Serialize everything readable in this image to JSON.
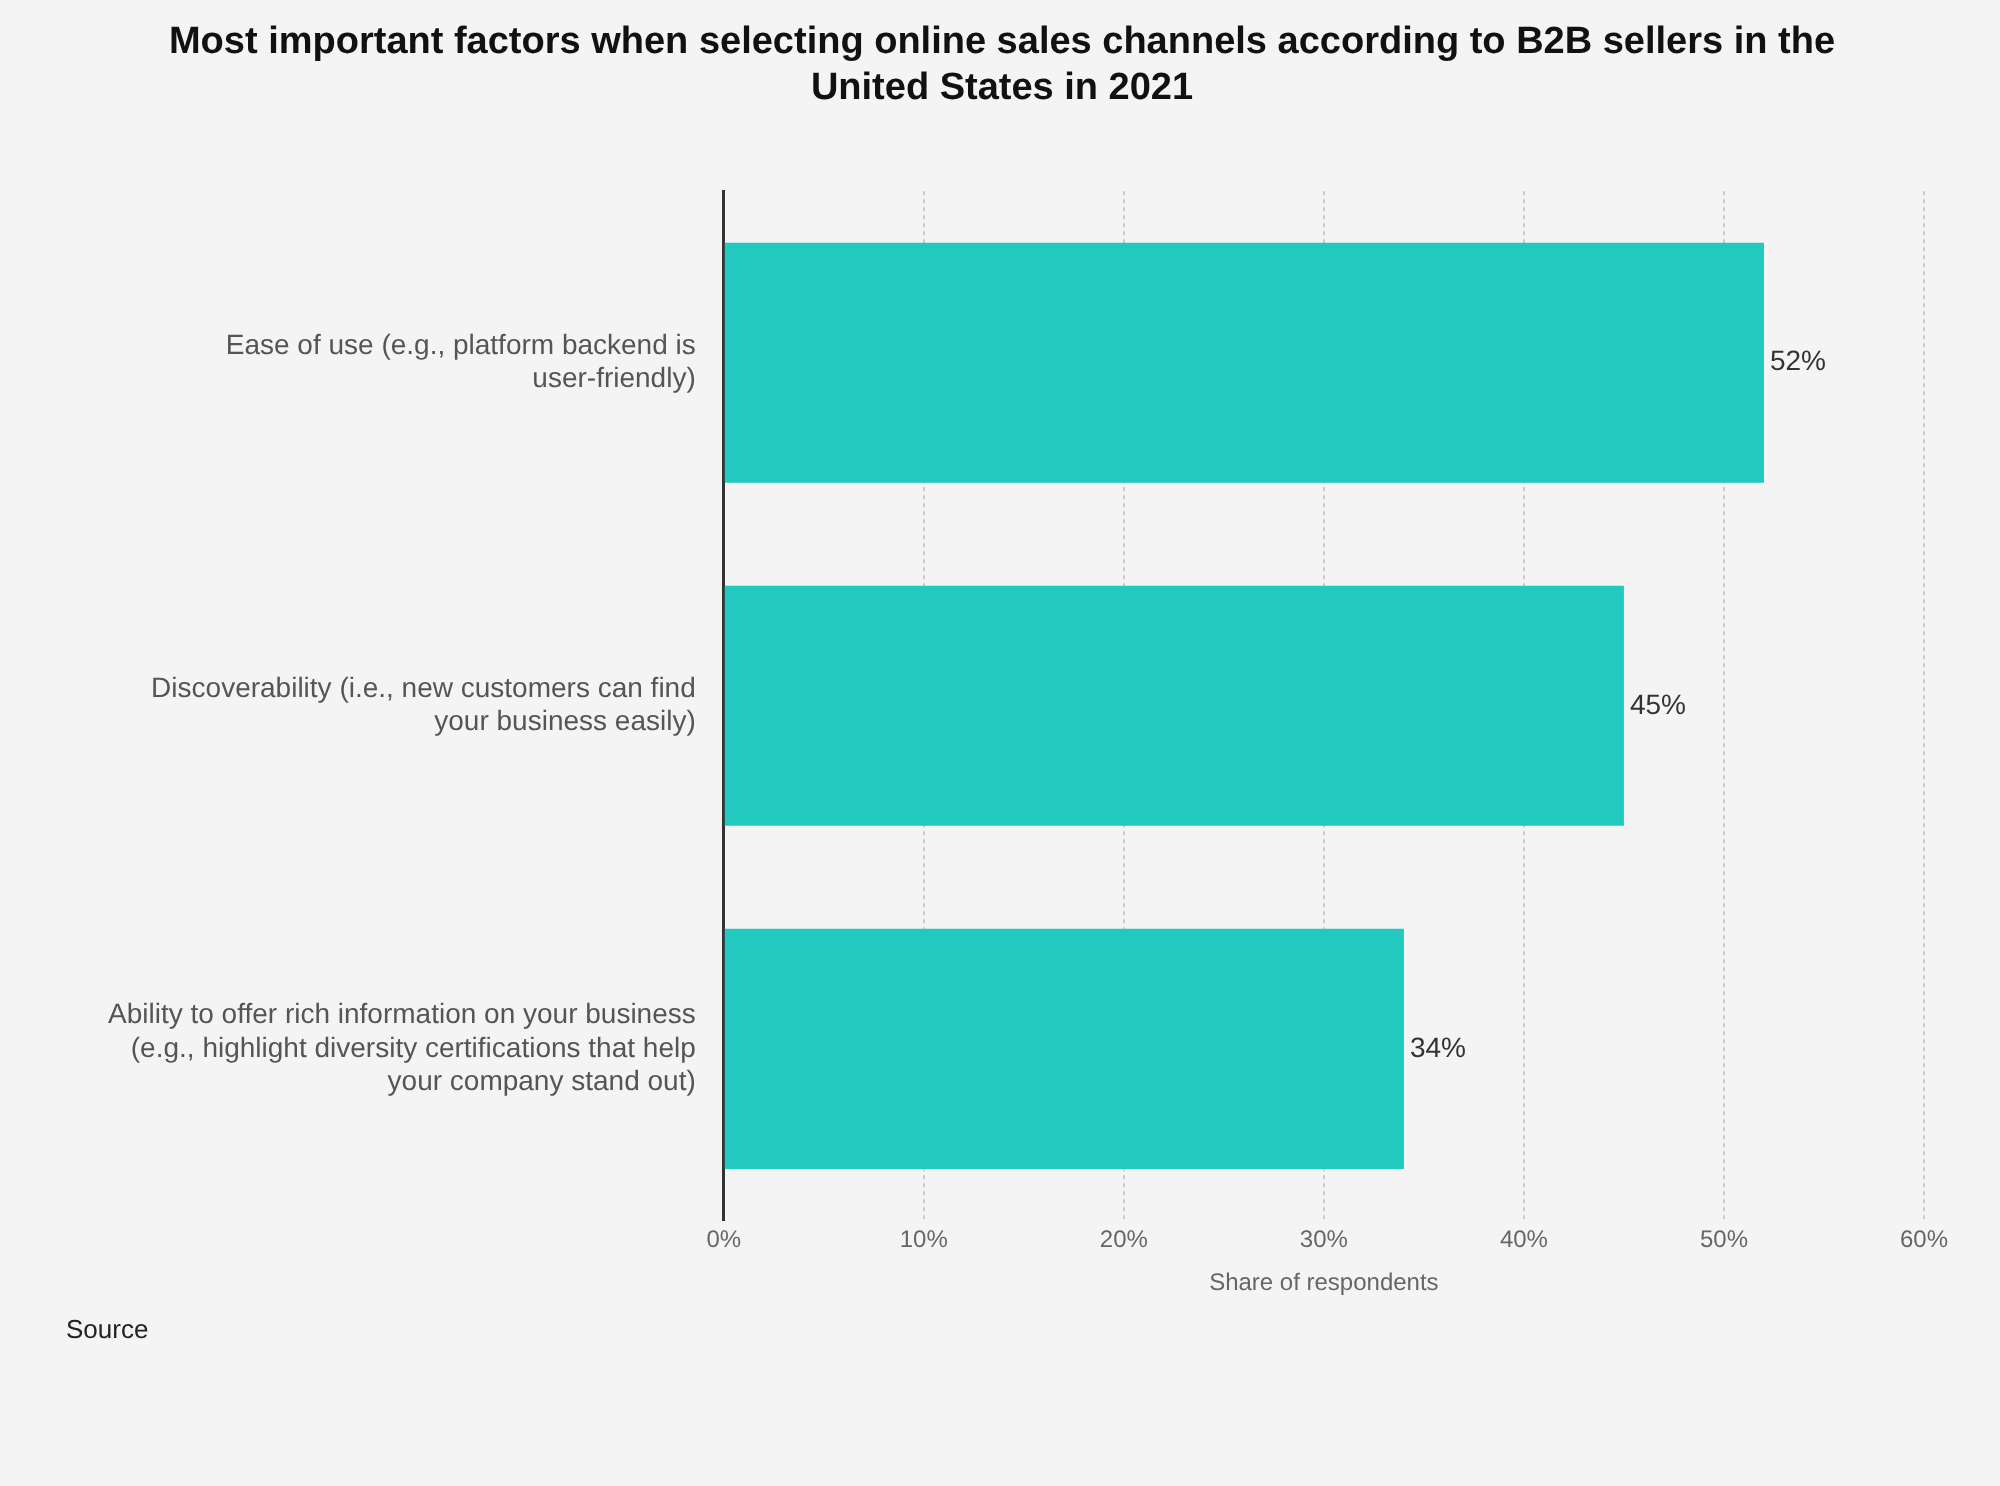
{
  "chart_data": {
    "type": "bar",
    "orientation": "horizontal",
    "title": "Most important factors when selecting online sales channels according to B2B sellers in the United States in 2021",
    "categories": [
      "Ease of use (e.g., platform backend is user-friendly)",
      "Discoverability (i.e., new customers can find your business easily)",
      "Ability to offer rich information on your business (e.g., highlight diversity certifications that help your company stand out)"
    ],
    "values": [
      52,
      45,
      34
    ],
    "color": "#21c9bf",
    "value_labels": [
      "52%",
      "45%",
      "34%"
    ],
    "xlabel": "Share of respondents",
    "xlim": [
      0,
      60
    ],
    "xticks": [
      {
        "value": 0,
        "label": "0%"
      },
      {
        "value": 10,
        "label": "10%"
      },
      {
        "value": 20,
        "label": "20%"
      },
      {
        "value": 30,
        "label": "30%"
      },
      {
        "value": 40,
        "label": "40%"
      },
      {
        "value": 50,
        "label": "50%"
      },
      {
        "value": 60,
        "label": "60%"
      }
    ],
    "grid": "x",
    "legend": false,
    "annotations": [
      "Source"
    ]
  }
}
